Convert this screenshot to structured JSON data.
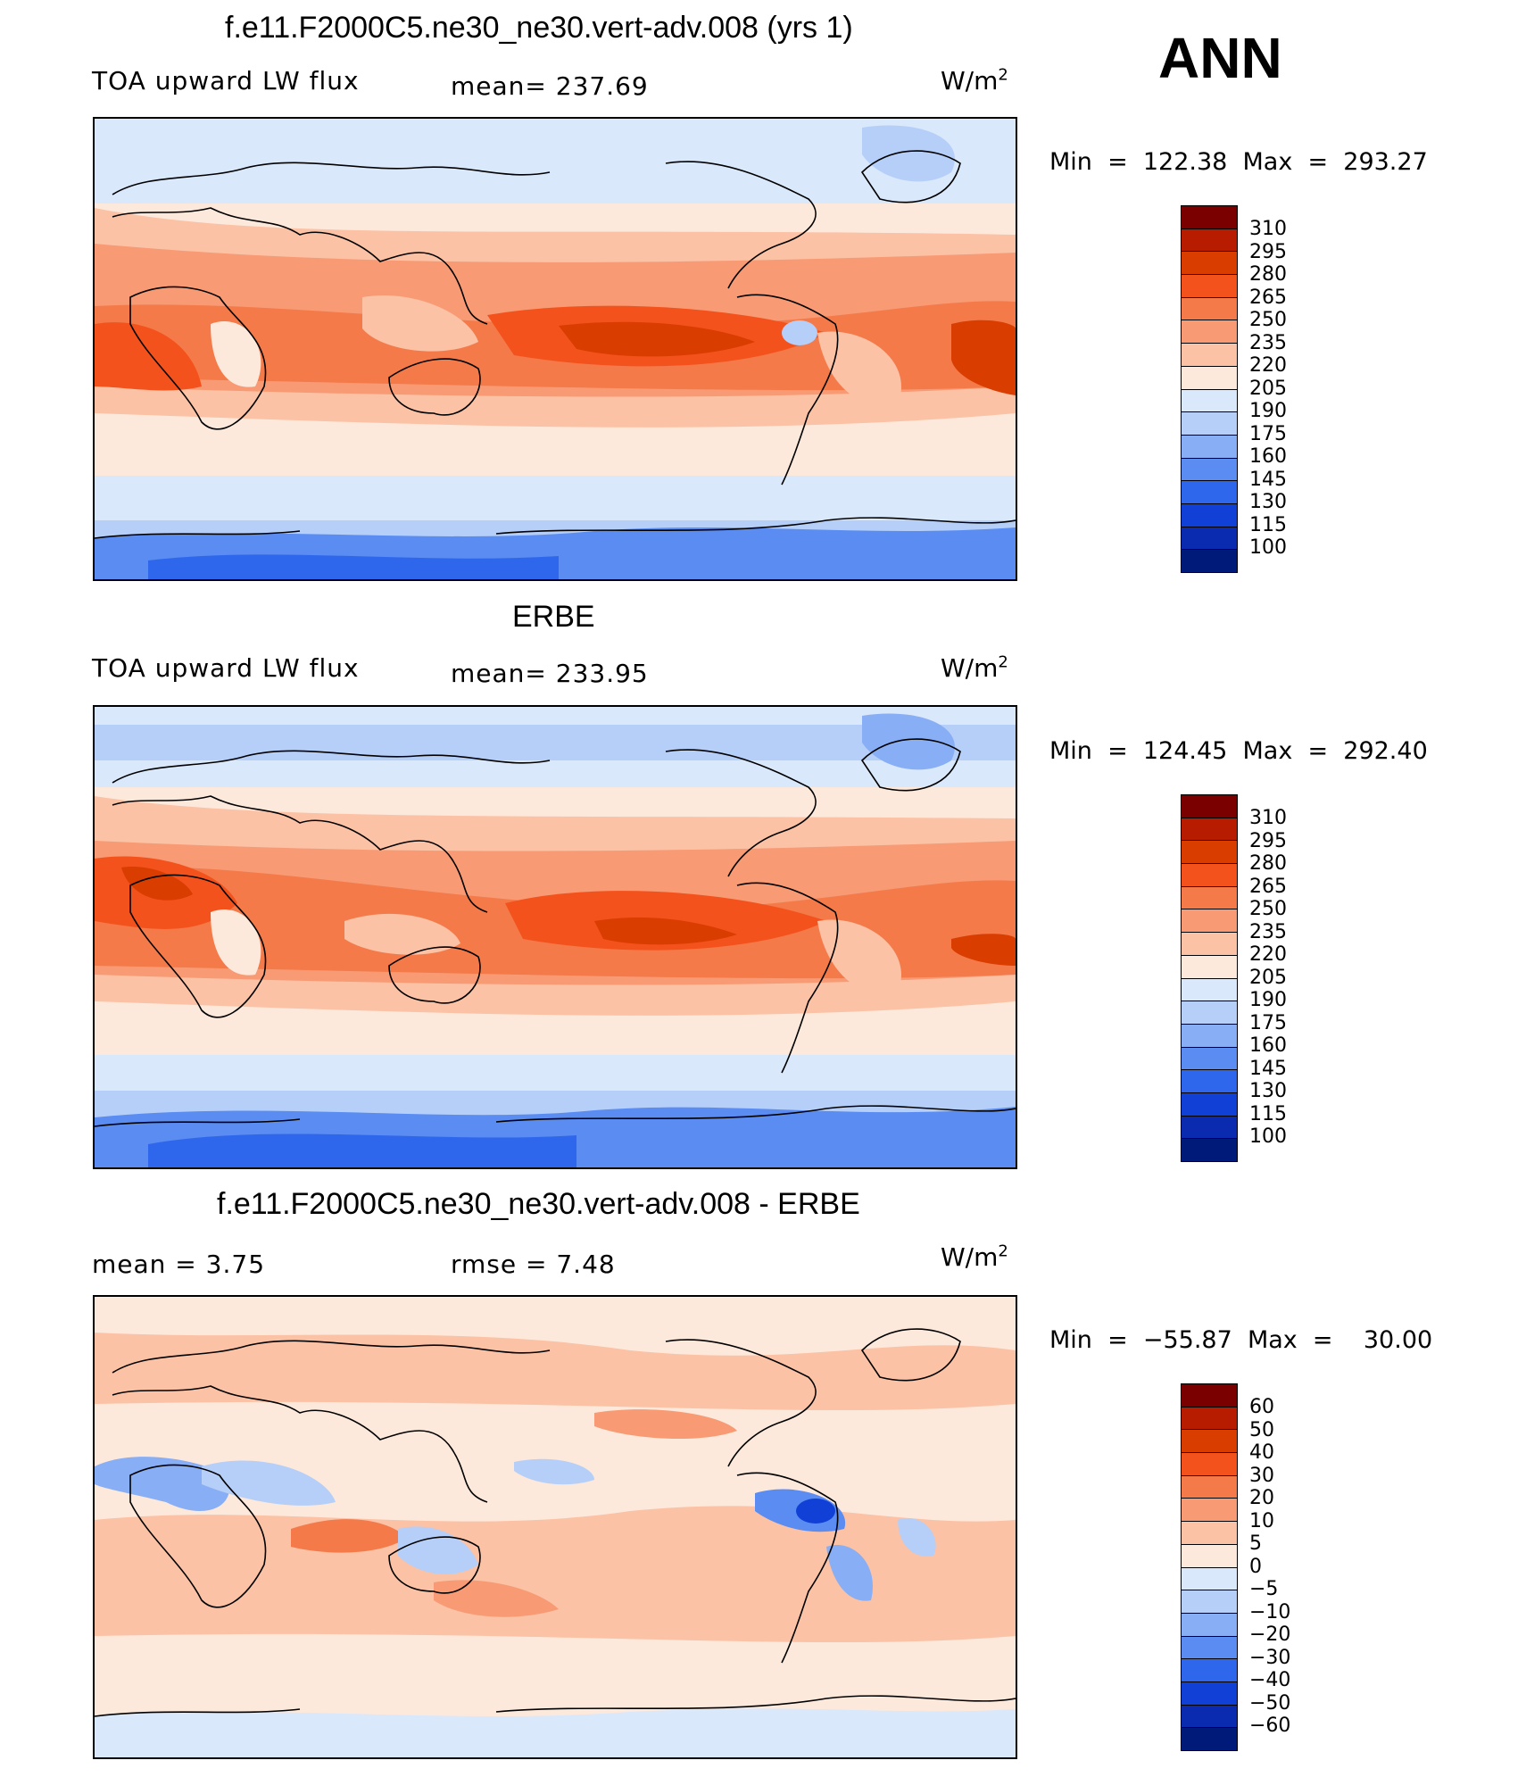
{
  "season": "ANN",
  "units_base": "W/m",
  "units_exp": "2",
  "panels": [
    {
      "title": "f.e11.F2000C5.ne30_ne30.vert-adv.008 (yrs 1)",
      "left_label": "TOA upward LW flux",
      "center_label": "mean= 237.69",
      "minmax": "Min  =  122.38  Max  =  293.27",
      "levels": [
        "310",
        "295",
        "280",
        "265",
        "250",
        "235",
        "220",
        "205",
        "190",
        "175",
        "160",
        "145",
        "130",
        "115",
        "100"
      ]
    },
    {
      "title": "ERBE",
      "left_label": "TOA upward LW flux",
      "center_label": "mean= 233.95",
      "minmax": "Min  =  124.45  Max  =  292.40",
      "levels": [
        "310",
        "295",
        "280",
        "265",
        "250",
        "235",
        "220",
        "205",
        "190",
        "175",
        "160",
        "145",
        "130",
        "115",
        "100"
      ]
    },
    {
      "title": "f.e11.F2000C5.ne30_ne30.vert-adv.008 - ERBE",
      "left_label": "mean  =     3.75",
      "center_label": "rmse  =     7.48",
      "minmax": "Min  =  −55.87  Max  =    30.00",
      "levels": [
        "60",
        "50",
        "40",
        "30",
        "20",
        "10",
        "5",
        "0",
        "−5",
        "−10",
        "−20",
        "−30",
        "−40",
        "−50",
        "−60"
      ]
    }
  ],
  "colors": {
    "colorbar": [
      "#7a0000",
      "#b81c00",
      "#d93d00",
      "#f4521c",
      "#f47a4a",
      "#f89a74",
      "#fbc2a6",
      "#fde9db",
      "#d9e8fb",
      "#b5cff8",
      "#88aef5",
      "#5a8cf2",
      "#2f67ec",
      "#1040d6",
      "#0a2ab0",
      "#001a7a"
    ]
  }
}
